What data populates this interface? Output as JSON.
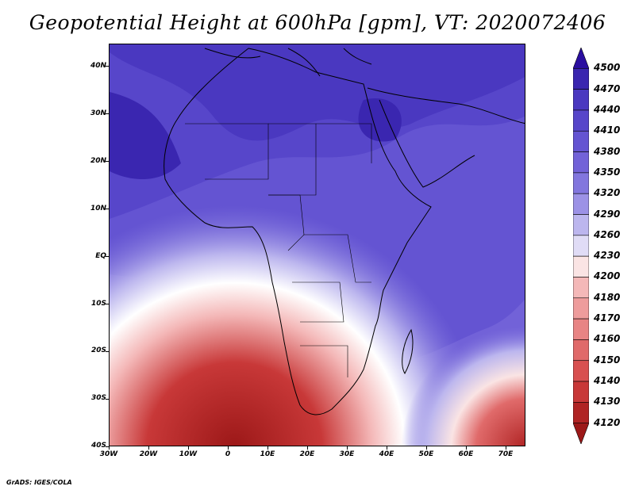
{
  "title": "Geopotential Height at 600hPa [gpm], VT: 2020072406",
  "credit": "GrADS: IGES/COLA",
  "map": {
    "lat_labels": [
      "40N",
      "30N",
      "20N",
      "10N",
      "EQ",
      "10S",
      "20S",
      "30S",
      "40S"
    ],
    "lon_labels": [
      "30W",
      "20W",
      "10W",
      "0",
      "10E",
      "20E",
      "30E",
      "40E",
      "50E",
      "60E",
      "70E"
    ],
    "lat_range": [
      -40,
      45
    ],
    "lon_range": [
      -30,
      75
    ]
  },
  "colorbar": {
    "levels": [
      "4500",
      "4470",
      "4440",
      "4410",
      "4380",
      "4350",
      "4320",
      "4290",
      "4260",
      "4230",
      "4200",
      "4180",
      "4170",
      "4160",
      "4150",
      "4140",
      "4130",
      "4120"
    ],
    "colors": [
      "#2a0ea0",
      "#3a26b0",
      "#4a38c0",
      "#5746ca",
      "#6454d2",
      "#7262d8",
      "#8276de",
      "#9c92e6",
      "#bcb6ee",
      "#e0dcf6",
      "#fae4e4",
      "#f4b8b8",
      "#ee9c9c",
      "#e88484",
      "#e06a6a",
      "#d85050",
      "#c83838",
      "#b02424",
      "#9c1818"
    ]
  }
}
